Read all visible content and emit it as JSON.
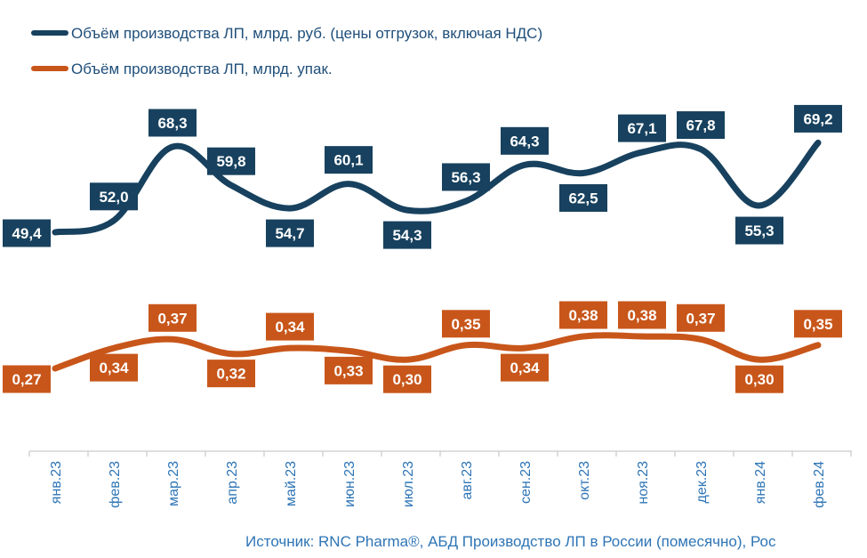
{
  "chart_data": {
    "type": "line",
    "categories": [
      "янв.23",
      "фев.23",
      "мар.23",
      "апр.23",
      "май.23",
      "июн.23",
      "июл.23",
      "авг.23",
      "сен.23",
      "окт.23",
      "ноя.23",
      "дек.23",
      "янв.24",
      "фев.24"
    ],
    "series": [
      {
        "name": "Объём производства ЛП, млрд. руб. (цены отгрузок, включая НДС)",
        "color": "#17415e",
        "values": [
          49.4,
          52.0,
          68.3,
          59.8,
          54.7,
          60.1,
          54.3,
          56.3,
          64.3,
          62.5,
          67.1,
          67.8,
          55.3,
          69.2
        ],
        "labels": [
          "49,4",
          "52,0",
          "68,3",
          "59,8",
          "54,7",
          "60,1",
          "54,3",
          "56,3",
          "64,3",
          "62,5",
          "67,1",
          "67,8",
          "55,3",
          "69,2"
        ]
      },
      {
        "name": "Объём производства ЛП, млрд. упак.",
        "color": "#c8561a",
        "values": [
          0.27,
          0.34,
          0.37,
          0.32,
          0.34,
          0.33,
          0.3,
          0.35,
          0.34,
          0.38,
          0.38,
          0.37,
          0.3,
          0.35
        ],
        "labels": [
          "0,27",
          "0,34",
          "0,37",
          "0,32",
          "0,34",
          "0,33",
          "0,30",
          "0,35",
          "0,34",
          "0,38",
          "0,38",
          "0,37",
          "0,30",
          "0,35"
        ]
      }
    ],
    "legend_position": "top-left",
    "grid": false,
    "source": "Источник: RNC Pharma®, АБД Производство ЛП в России (помесячно), Рос"
  }
}
